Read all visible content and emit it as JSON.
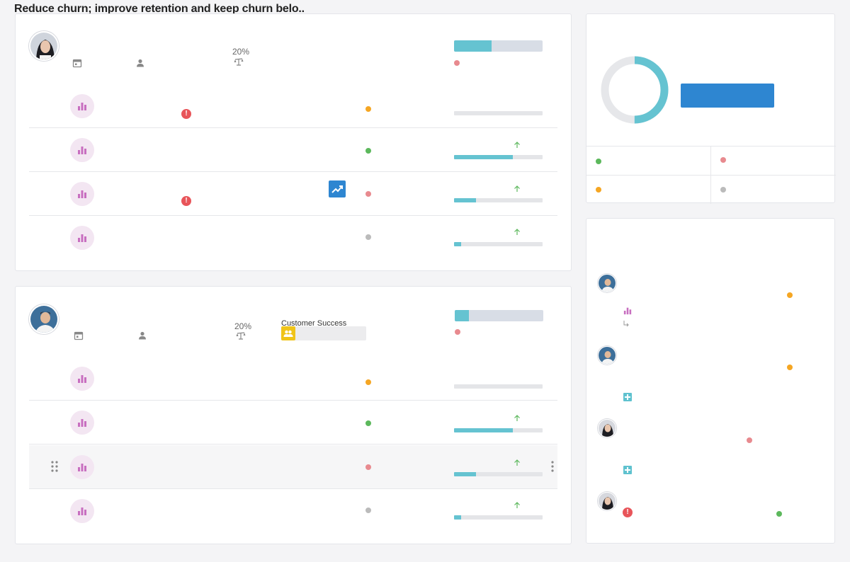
{
  "header": {
    "overlay_text": "Reduce churn; improve retention and keep churn belo.."
  },
  "objective_cards": [
    {
      "owner_avatar": "woman-avatar",
      "percent_label": "20%",
      "progress": 0.42,
      "status_color": "#e88a8f",
      "key_results": [
        {
          "icon": "bar-chart-icon",
          "status_color": "#f5a623",
          "progress": 0.0,
          "has_alert": true,
          "has_trend": false,
          "trend_arrow": false
        },
        {
          "icon": "bar-chart-icon",
          "status_color": "#5cb85c",
          "progress": 0.66,
          "has_alert": false,
          "has_trend": false,
          "trend_arrow": true
        },
        {
          "icon": "bar-chart-icon",
          "status_color": "#e88a8f",
          "progress": 0.25,
          "has_alert": true,
          "has_trend": true,
          "trend_arrow": true
        },
        {
          "icon": "bar-chart-icon",
          "status_color": "#bbbbbb",
          "progress": 0.08,
          "has_alert": false,
          "has_trend": false,
          "trend_arrow": true
        }
      ]
    },
    {
      "owner_avatar": "man-avatar",
      "percent_label": "20%",
      "team_label": "Customer Success",
      "progress": 0.16,
      "status_color": "#e88a8f",
      "key_results": [
        {
          "icon": "bar-chart-icon",
          "status_color": "#f5a623",
          "progress": 0.0,
          "trend_arrow": false
        },
        {
          "icon": "bar-chart-icon",
          "status_color": "#5cb85c",
          "progress": 0.66,
          "trend_arrow": true
        },
        {
          "icon": "bar-chart-icon",
          "status_color": "#e88a8f",
          "progress": 0.25,
          "trend_arrow": true,
          "highlighted": true
        },
        {
          "icon": "bar-chart-icon",
          "status_color": "#bbbbbb",
          "progress": 0.08,
          "trend_arrow": true
        }
      ]
    }
  ],
  "summary": {
    "donut_progress": 0.5,
    "legend": [
      {
        "color": "#5cb85c"
      },
      {
        "color": "#e88a8f"
      },
      {
        "color": "#f5a623"
      },
      {
        "color": "#bbbbbb"
      }
    ]
  },
  "activity": [
    {
      "avatar": "man-avatar",
      "status_color": "#f5a623",
      "sub_icon": "bar-chart-icon"
    },
    {
      "avatar": "man-avatar",
      "status_color": "#f5a623",
      "sub_icon": "puzzle-icon"
    },
    {
      "avatar": "woman-avatar",
      "status_color": "#e88a8f",
      "sub_icon": "puzzle-icon"
    },
    {
      "avatar": "woman-avatar",
      "status_color": "#5cb85c",
      "sub_icon": "alert-icon"
    }
  ],
  "colors": {
    "accent_blue": "#2e86d1",
    "progress_teal": "#65c3d1",
    "kr_icon_purple": "#c86fc0"
  }
}
